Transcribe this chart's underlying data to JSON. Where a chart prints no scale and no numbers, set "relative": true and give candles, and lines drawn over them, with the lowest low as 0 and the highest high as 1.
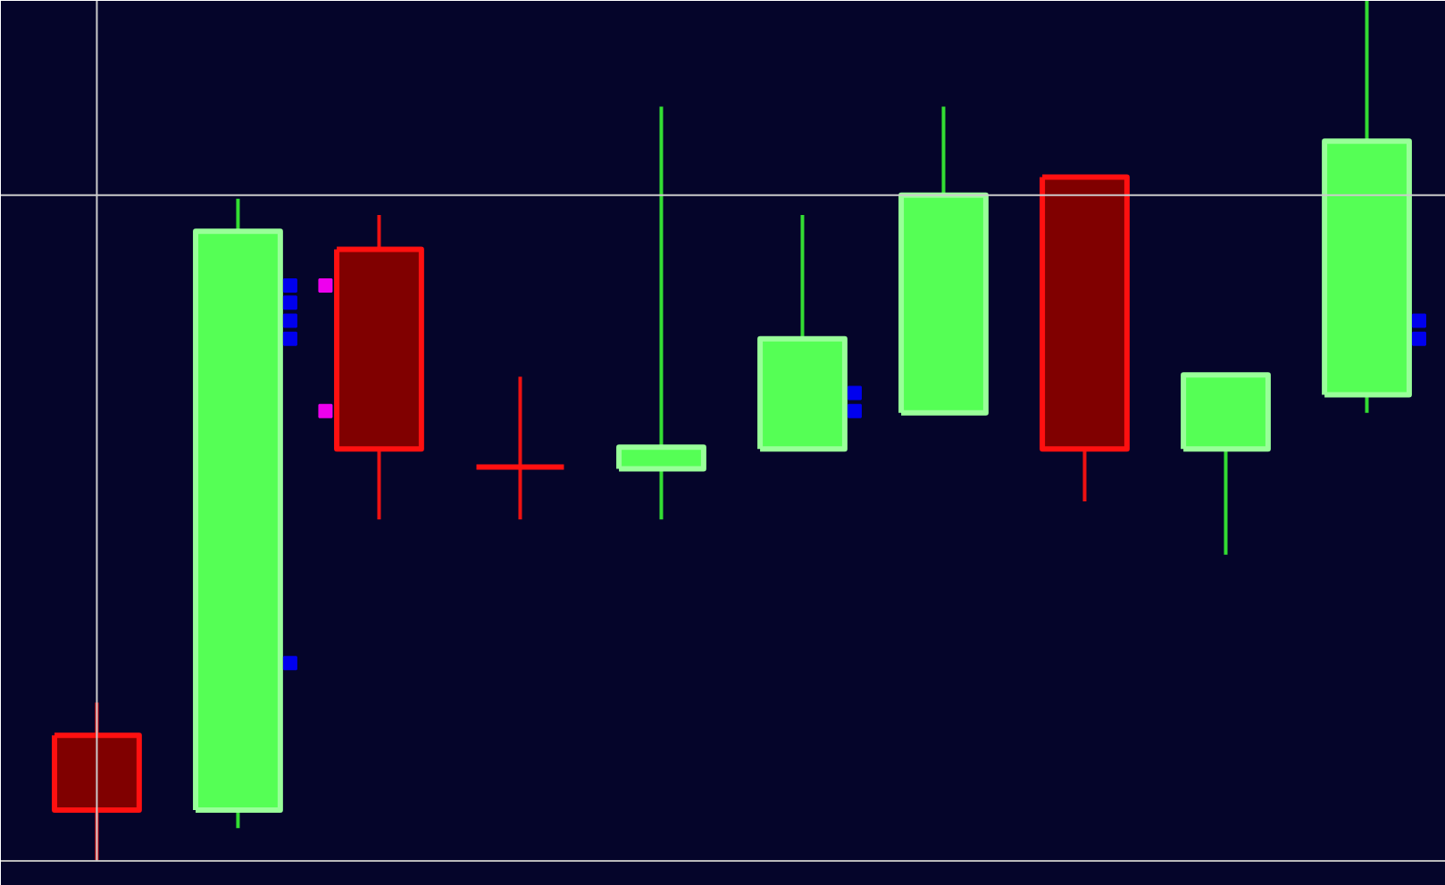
{
  "chart_data": {
    "type": "candlestick",
    "relative": true,
    "categories": [
      null,
      null,
      null,
      null,
      null,
      null,
      null,
      null,
      null,
      null
    ],
    "ohlc": [
      [
        0.146,
        0.184,
        0,
        0.059
      ],
      [
        0.059,
        0.77,
        0.038,
        0.732
      ],
      [
        0.711,
        0.751,
        0.397,
        0.479
      ],
      [
        0.458,
        0.563,
        0.397,
        0.458
      ],
      [
        0.456,
        0.877,
        0.397,
        0.481
      ],
      [
        0.479,
        0.751,
        0.479,
        0.607
      ],
      [
        0.521,
        0.877,
        0.521,
        0.774
      ],
      [
        0.795,
        0.795,
        0.418,
        0.479
      ],
      [
        0.479,
        0.565,
        0.356,
        0.565
      ],
      [
        0.542,
        1,
        0.521,
        0.837
      ]
    ],
    "series": [
      {
        "type": "scatter",
        "marker": "square",
        "color": "#0000ee",
        "values": [
          null,
          0.669,
          null,
          null,
          null,
          0.544,
          null,
          null,
          null,
          0.628
        ]
      },
      {
        "type": "scatter",
        "marker": "square",
        "color": "#0000ee",
        "values": [
          null,
          0.649,
          null,
          null,
          null,
          0.523,
          null,
          null,
          null,
          0.607
        ]
      },
      {
        "type": "scatter",
        "marker": "square",
        "color": "#0000ee",
        "values": [
          null,
          0.628,
          null,
          null,
          null,
          null,
          null,
          null,
          null,
          null
        ]
      },
      {
        "type": "scatter",
        "marker": "square",
        "color": "#0000ee",
        "values": [
          null,
          0.607,
          null,
          null,
          null,
          null,
          null,
          null,
          null,
          null
        ]
      },
      {
        "type": "scatter",
        "marker": "square",
        "color": "#0000ee",
        "values": [
          null,
          0.23,
          null,
          null,
          null,
          null,
          null,
          null,
          null,
          null
        ]
      },
      {
        "type": "scatter",
        "marker": "square",
        "color": "#ee00ee",
        "values": [
          null,
          null,
          0.669,
          null,
          null,
          null,
          null,
          null,
          null,
          null
        ]
      },
      {
        "type": "scatter",
        "marker": "square",
        "color": "#ee00ee",
        "values": [
          null,
          null,
          0.523,
          null,
          null,
          null,
          null,
          null,
          null,
          null
        ]
      }
    ],
    "ref_lines": [
      {
        "axis": "y",
        "value": 0.774,
        "color": "#cccccc"
      }
    ],
    "grid": false,
    "tick_labels": false
  }
}
